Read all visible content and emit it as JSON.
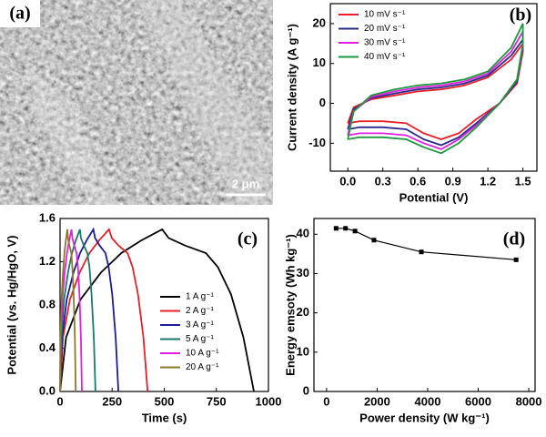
{
  "image_panel": {
    "label": "(a)",
    "scale_bar": "2 μm"
  },
  "chart_data": [
    {
      "type": "line",
      "label": "(b)",
      "x_label": "Potential (V)",
      "y_label": "Current density (A g⁻¹)",
      "xlim": [
        -0.15,
        1.62
      ],
      "ylim": [
        -17,
        25
      ],
      "xticks": [
        {
          "value": 0,
          "label": "0.0"
        },
        0.3,
        0.6,
        0.9,
        1.2,
        1.5
      ],
      "yticks": [
        -10,
        0,
        10,
        20
      ],
      "legend": "top-left",
      "series": [
        {
          "name": "10 mV s⁻¹",
          "color": "#e8202a",
          "x": [
            0,
            0.05,
            0.2,
            0.4,
            0.6,
            0.8,
            1.0,
            1.2,
            1.4,
            1.5,
            1.5,
            1.45,
            1.3,
            1.1,
            0.95,
            0.8,
            0.65,
            0.5,
            0.3,
            0.1,
            0
          ],
          "values": [
            -5,
            -1,
            1,
            2,
            3,
            3.5,
            4.5,
            6.5,
            11,
            15,
            13,
            5,
            0,
            -4,
            -7.5,
            -9,
            -7.5,
            -5,
            -4.5,
            -4.5,
            -5
          ]
        },
        {
          "name": "20 mV s⁻¹",
          "color": "#2a2a8a",
          "x": [
            0,
            0.05,
            0.2,
            0.4,
            0.6,
            0.8,
            1.0,
            1.2,
            1.4,
            1.5,
            1.5,
            1.45,
            1.3,
            1.1,
            0.95,
            0.8,
            0.65,
            0.5,
            0.3,
            0.1,
            0
          ],
          "values": [
            -6.5,
            -1.5,
            1.3,
            2.5,
            3.5,
            4,
            5,
            7,
            12,
            16,
            14,
            5.5,
            0,
            -5,
            -8.5,
            -10.5,
            -9,
            -6.5,
            -6,
            -6,
            -6.5
          ]
        },
        {
          "name": "30 mV s⁻¹",
          "color": "#e020e0",
          "x": [
            0,
            0.05,
            0.2,
            0.4,
            0.6,
            0.8,
            1.0,
            1.2,
            1.4,
            1.5,
            1.5,
            1.45,
            1.3,
            1.1,
            0.95,
            0.8,
            0.65,
            0.5,
            0.3,
            0.1,
            0
          ],
          "values": [
            -8,
            -2,
            1.6,
            3,
            4,
            4.5,
            5.5,
            7.5,
            13,
            18,
            14.5,
            6,
            0,
            -5.5,
            -9,
            -11.5,
            -10,
            -8,
            -7.5,
            -7.5,
            -8
          ]
        },
        {
          "name": "40 mV s⁻¹",
          "color": "#1a9a3a",
          "x": [
            0,
            0.05,
            0.2,
            0.4,
            0.6,
            0.8,
            1.0,
            1.2,
            1.4,
            1.5,
            1.5,
            1.45,
            1.3,
            1.1,
            0.95,
            0.8,
            0.65,
            0.5,
            0.3,
            0.1,
            0
          ],
          "values": [
            -9,
            -2,
            2,
            3.5,
            4.5,
            5,
            6,
            8,
            14,
            20,
            15,
            6,
            0,
            -6,
            -10,
            -12.5,
            -11,
            -9,
            -8.5,
            -8.5,
            -9
          ]
        }
      ]
    },
    {
      "type": "line",
      "label": "(c)",
      "x_label": "Time (s)",
      "y_label": "Potential (vs. Hg/HgO, V)",
      "xlim": [
        0,
        1000
      ],
      "ylim": [
        0,
        1.6
      ],
      "xticks": [
        0,
        250,
        500,
        750,
        1000
      ],
      "yticks": [
        {
          "value": 0,
          "label": "0.0"
        },
        0.4,
        0.8,
        1.2,
        1.6
      ],
      "legend": "right",
      "series": [
        {
          "name": "1 A g⁻¹",
          "color": "#000000",
          "x": [
            0,
            29,
            98,
            196,
            294,
            392,
            490,
            521,
            600,
            700,
            757,
            820,
            880,
            930
          ],
          "values": [
            0,
            0.5,
            0.85,
            1.1,
            1.28,
            1.4,
            1.5,
            1.42,
            1.35,
            1.28,
            1.15,
            0.9,
            0.5,
            0
          ]
        },
        {
          "name": "2 A g⁻¹",
          "color": "#e8202a",
          "x": [
            0,
            14,
            47,
            94,
            141,
            188,
            235,
            248,
            281,
            324,
            348,
            374,
            400,
            420
          ],
          "values": [
            0,
            0.5,
            0.85,
            1.1,
            1.28,
            1.4,
            1.5,
            1.42,
            1.35,
            1.28,
            1.15,
            0.9,
            0.5,
            0
          ]
        },
        {
          "name": "3 A g⁻¹",
          "color": "#1c1c9a",
          "x": [
            0,
            10,
            32,
            64,
            96,
            128,
            160,
            168,
            190,
            218,
            233,
            250,
            267,
            280
          ],
          "values": [
            0,
            0.5,
            0.85,
            1.1,
            1.28,
            1.4,
            1.5,
            1.42,
            1.35,
            1.28,
            1.15,
            0.9,
            0.5,
            0
          ]
        },
        {
          "name": "5 A g⁻¹",
          "color": "#1a7a6a",
          "x": [
            0,
            6,
            19,
            38,
            57,
            76,
            95,
            100,
            114,
            131,
            141,
            151,
            162,
            170
          ],
          "values": [
            0,
            0.5,
            0.85,
            1.1,
            1.28,
            1.4,
            1.5,
            1.42,
            1.35,
            1.28,
            1.15,
            0.9,
            0.5,
            0
          ]
        },
        {
          "name": "10 A g⁻¹",
          "color": "#e020e0",
          "x": [
            0,
            3,
            11,
            22,
            33,
            44,
            55,
            59,
            68,
            79,
            86,
            93,
            100,
            105
          ],
          "values": [
            0,
            0.5,
            0.85,
            1.1,
            1.28,
            1.4,
            1.5,
            1.42,
            1.35,
            1.28,
            1.15,
            0.9,
            0.5,
            0
          ]
        },
        {
          "name": "20 A g⁻¹",
          "color": "#8a7a2a",
          "x": [
            0,
            2,
            7,
            14,
            21,
            28,
            35,
            38,
            45,
            54,
            59,
            65,
            71,
            75
          ],
          "values": [
            0,
            0.5,
            0.85,
            1.1,
            1.28,
            1.4,
            1.5,
            1.42,
            1.35,
            1.28,
            1.15,
            0.9,
            0.5,
            0
          ]
        }
      ]
    },
    {
      "type": "line",
      "label": "(d)",
      "x_label": "Power density (W kg⁻¹)",
      "y_label": "Energy emsoty (Wh kg⁻¹)",
      "xlim": [
        -500,
        8250
      ],
      "ylim": [
        0,
        44
      ],
      "xticks": [
        0,
        2000,
        4000,
        6000,
        8000
      ],
      "yticks": [
        0,
        10,
        20,
        30,
        40
      ],
      "markers": true,
      "series": [
        {
          "color": "#000000",
          "x": [
            375,
            750,
            1125,
            1875,
            3750,
            7500
          ],
          "values": [
            41.5,
            41.5,
            40.8,
            38.5,
            35.5,
            33.5
          ]
        }
      ]
    }
  ]
}
